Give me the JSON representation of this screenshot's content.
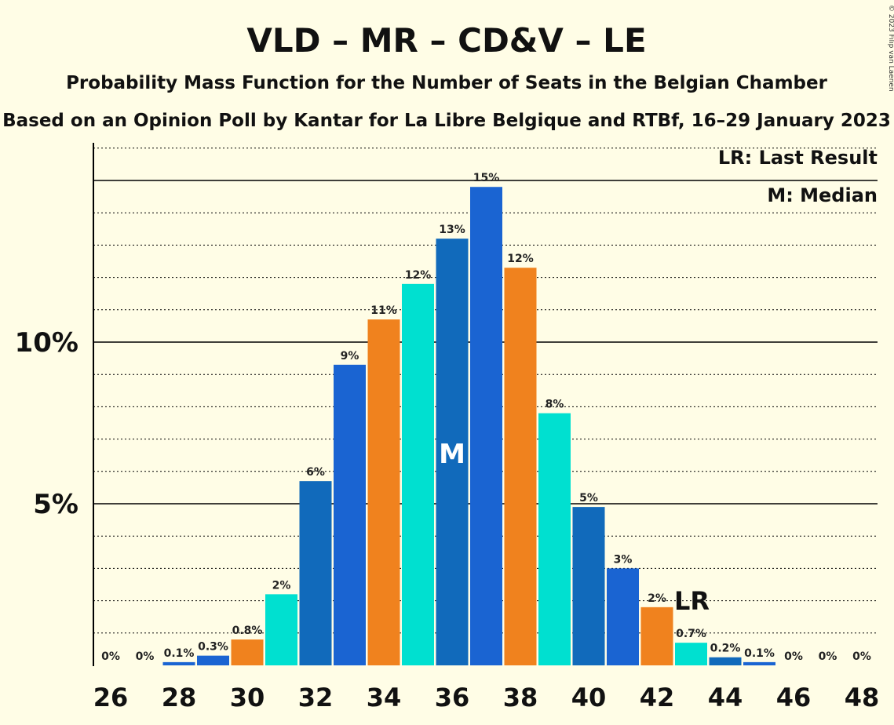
{
  "chart_data": {
    "type": "bar",
    "title": "VLD – MR – CD&V – LE",
    "subtitle1": "Probability Mass Function for the Number of Seats in the Belgian Chamber",
    "subtitle2": "Based on an Opinion Poll by Kantar for La Libre Belgique and RTBf, 16–29 January 2023",
    "copyright": "© 2023 Filip van Laenen",
    "legend": [
      "LR: Last Result",
      "M: Median"
    ],
    "xlabel": "",
    "ylabel": "",
    "x": [
      26,
      27,
      28,
      29,
      30,
      31,
      32,
      33,
      34,
      35,
      36,
      37,
      38,
      39,
      40,
      41,
      42,
      43,
      44,
      45,
      46,
      47,
      48
    ],
    "values": [
      0,
      0,
      0.1,
      0.3,
      0.8,
      2.2,
      5.7,
      9.3,
      10.7,
      11.8,
      13.2,
      14.8,
      12.3,
      7.8,
      4.9,
      3.0,
      1.8,
      0.7,
      0.25,
      0.1,
      0,
      0,
      0
    ],
    "labels": [
      "0%",
      "0%",
      "0.1%",
      "0.3%",
      "0.8%",
      "2%",
      "6%",
      "9%",
      "11%",
      "12%",
      "13%",
      "15%",
      "12%",
      "8%",
      "5%",
      "3%",
      "2%",
      "0.7%",
      "0.2%",
      "0.1%",
      "0%",
      "0%",
      "0%"
    ],
    "colors": [
      "#1A64D2",
      "#1A64D2",
      "#1A64D2",
      "#1A64D2",
      "#F0821E",
      "#00E0D0",
      "#116ABB",
      "#1A64D2",
      "#F0821E",
      "#00E0D0",
      "#116ABB",
      "#1A64D2",
      "#F0821E",
      "#00E0D0",
      "#116ABB",
      "#1A64D2",
      "#F0821E",
      "#00E0D0",
      "#116ABB",
      "#1A64D2",
      "#F0821E",
      "#00E0D0",
      "#116ABB"
    ],
    "xticks": [
      26,
      28,
      30,
      32,
      34,
      36,
      38,
      40,
      42,
      44,
      46,
      48
    ],
    "yticks": [
      {
        "value": 5,
        "label": "5%"
      },
      {
        "value": 10,
        "label": "10%"
      }
    ],
    "ylim": [
      0,
      16.2
    ],
    "median_seat": 36,
    "median_label": "M",
    "last_result_seat": 43,
    "last_result_label": "LR"
  }
}
